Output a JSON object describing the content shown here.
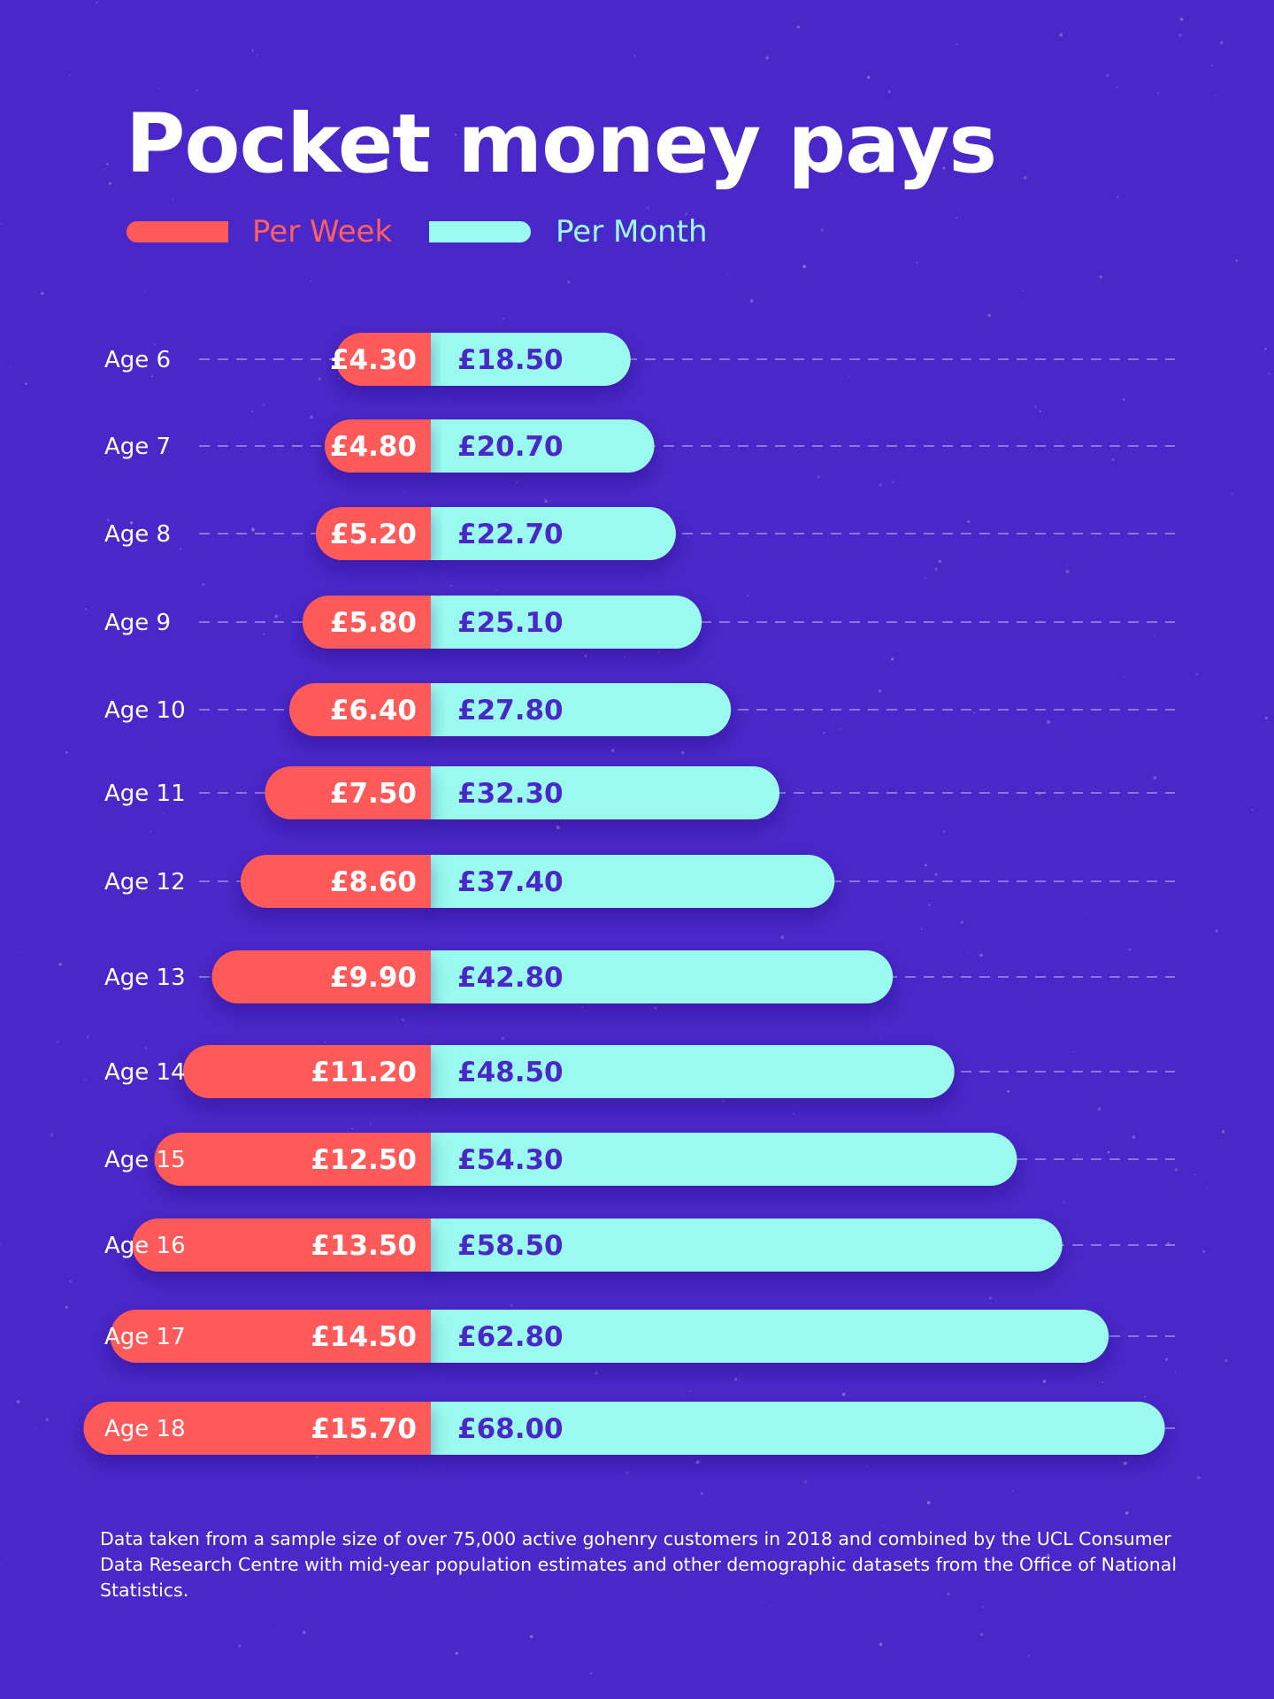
{
  "title": "Pocket money pays",
  "legend": {
    "week_label": "Per Week",
    "month_label": "Per Month"
  },
  "colors": {
    "background": "#4a27c8",
    "week": "#ff5a5a",
    "month": "#9bfaf0",
    "week_text": "#ffffff",
    "month_text": "#4a27c8",
    "age_text": "#ffffff",
    "guide": "#8a76e2"
  },
  "chart_data": {
    "type": "bar",
    "orientation": "horizontal",
    "stacked": "diverging",
    "categories": [
      "Age 6",
      "Age 7",
      "Age 8",
      "Age 9",
      "Age 10",
      "Age 11",
      "Age 12",
      "Age 13",
      "Age 14",
      "Age 15",
      "Age 16",
      "Age 17",
      "Age 18"
    ],
    "series": [
      {
        "name": "Per Week",
        "values": [
          4.3,
          4.8,
          5.2,
          5.8,
          6.4,
          7.5,
          8.6,
          9.9,
          11.2,
          12.5,
          13.5,
          14.5,
          15.7
        ],
        "labels": [
          "£4.30",
          "£4.80",
          "£5.20",
          "£5.80",
          "£6.40",
          "£7.50",
          "£8.60",
          "£9.90",
          "£11.20",
          "£12.50",
          "£13.50",
          "£14.50",
          "£15.70"
        ]
      },
      {
        "name": "Per Month",
        "values": [
          18.5,
          20.7,
          22.7,
          25.1,
          27.8,
          32.3,
          37.4,
          42.8,
          48.5,
          54.3,
          58.5,
          62.8,
          68.0
        ],
        "labels": [
          "£18.50",
          "£20.70",
          "£22.70",
          "£25.10",
          "£27.80",
          "£32.30",
          "£37.40",
          "£42.80",
          "£48.50",
          "£54.30",
          "£58.50",
          "£62.80",
          "£68.00"
        ]
      }
    ],
    "legend": "top-left",
    "grid": false
  },
  "footnote": "Data taken from a sample size of over 75,000 active gohenry customers in 2018 and combined by the UCL Consumer Data Research Centre with mid-year population estimates and other demographic datasets from the Office of National Statistics."
}
